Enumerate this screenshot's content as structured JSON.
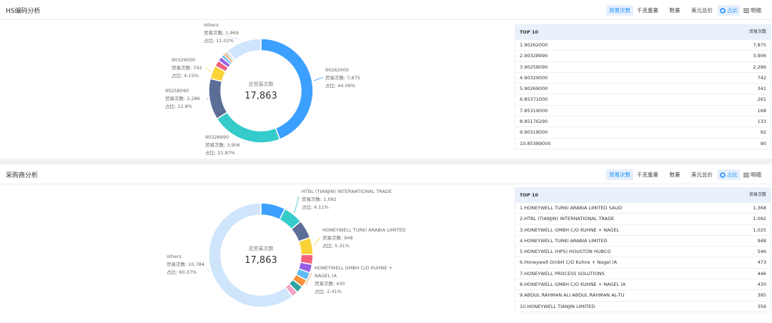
{
  "panels": [
    {
      "title": "HS编码分析",
      "metrics": [
        "贸易次数",
        "千克重量",
        "数量",
        "美元总价"
      ],
      "views": [
        "占比",
        "明细"
      ],
      "table": {
        "header": [
          "TOP 10",
          "贸易次数"
        ],
        "rows": [
          [
            "1.90262000",
            "7,875"
          ],
          [
            "2.90328990",
            "3,906"
          ],
          [
            "3.90258090",
            "2,286"
          ],
          [
            "4.90329000",
            "742"
          ],
          [
            "5.90269000",
            "341"
          ],
          [
            "6.85371000",
            "261"
          ],
          [
            "7.85319000",
            "168"
          ],
          [
            "8.85176290",
            "133"
          ],
          [
            "9.90318000",
            "92"
          ],
          [
            "10.85389000",
            "90"
          ]
        ]
      }
    },
    {
      "title": "采购商分析",
      "metrics": [
        "贸易次数",
        "千克重量",
        "数量",
        "美元总价"
      ],
      "views": [
        "占比",
        "明细"
      ],
      "table": {
        "header": [
          "TOP 10",
          "贸易次数"
        ],
        "rows": [
          [
            "1.HONEYWELL TURKI ARABIA LIMITED SAUD",
            "1,368"
          ],
          [
            "2.HTBL (TIANJIN) INTERNATIONAL TRADE",
            "1,092"
          ],
          [
            "3.HONEYWELL GMBH C/O KUHNE + NAGEL",
            "1,025"
          ],
          [
            "4.HONEYWELL TURKI ARABIA LIMITED",
            "948"
          ],
          [
            "5.HONEYWELL (HPS) HOUSTON HUBCO",
            "546"
          ],
          [
            "6.Honeywell GmbH C/O Kuhne + Nagel (A",
            "473"
          ],
          [
            "7.HONEYWELL PROCESS SOLUTIONS",
            "446"
          ],
          [
            "8.HONEYWELL GMBH C/O KUHNE + NAGEL (A",
            "430"
          ],
          [
            "9.ABDUL RAHMAN ALI ABDUL RAHMAN AL-TU",
            "395"
          ],
          [
            "10.HONEYWELL TIANJIN LIMITED",
            "356"
          ]
        ]
      }
    }
  ],
  "chart_data": [
    {
      "type": "donut",
      "center_label": "总贸易次数",
      "center_value_label": "17,863",
      "count_prefix": "贸易次数:",
      "share_prefix": "占比:",
      "categories": [
        "90262000",
        "90328990",
        "90258090",
        "90329000",
        null,
        null,
        null,
        null,
        null,
        null,
        "others"
      ],
      "values": [
        7875,
        3906,
        2286,
        742,
        341,
        261,
        168,
        133,
        92,
        90,
        1969
      ],
      "value_labels": [
        "7,875",
        "3,906",
        "2,286",
        "742",
        null,
        null,
        null,
        null,
        null,
        null,
        "1,969"
      ],
      "share_labels": [
        "44.09%",
        "21.87%",
        "12.8%",
        "4.15%",
        null,
        null,
        null,
        null,
        null,
        null,
        "11.02%"
      ],
      "colors": [
        "#3ba0ff",
        "#36cbcb",
        "#5b6e96",
        "#fad337",
        "#f2637b",
        "#975fe4",
        "#5ebbf5",
        "#f6903d",
        "#2fa3a3",
        "#f5a4c3",
        "#cfe5fb"
      ]
    },
    {
      "type": "donut",
      "center_label": "总贸易次数",
      "center_value_label": "17,863",
      "count_prefix": "贸易次数:",
      "share_prefix": "占比:",
      "categories": [
        null,
        "HTBL (TIANJIN) INTERNATIONAL TRADE",
        null,
        "HONEYWELL TURKI ARABIA LIMITED",
        null,
        null,
        null,
        "HONEYWELL GMBH C/O KUHNE + NAGEL (A",
        null,
        null,
        "others"
      ],
      "values": [
        1368,
        1092,
        1025,
        948,
        546,
        473,
        446,
        430,
        395,
        356,
        10784
      ],
      "value_labels": [
        null,
        "1,092",
        null,
        "948",
        null,
        null,
        null,
        "430",
        null,
        null,
        "10,784"
      ],
      "share_labels": [
        null,
        "6.11%",
        null,
        "5.31%",
        null,
        null,
        null,
        "2.41%",
        null,
        null,
        "60.37%"
      ],
      "colors": [
        "#3ba0ff",
        "#36cbcb",
        "#5b6e96",
        "#fad337",
        "#f2637b",
        "#975fe4",
        "#5ebbf5",
        "#f6903d",
        "#2fa3a3",
        "#f5a4c3",
        "#cfe5fb"
      ]
    }
  ]
}
